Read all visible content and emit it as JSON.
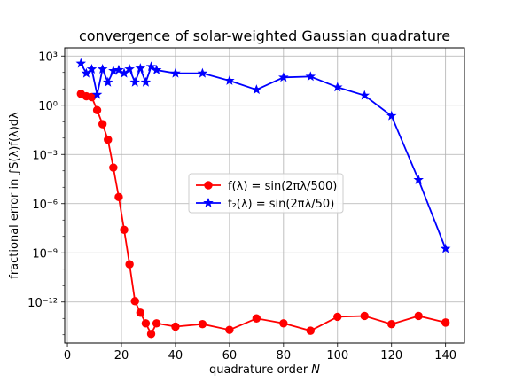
{
  "chart_data": {
    "type": "line",
    "title": "convergence of solar-weighted Gaussian quadrature",
    "xlabel": "quadrature order N",
    "ylabel": "fractional error in ∫S(λ)f(λ)dλ",
    "xlim": [
      -1,
      147
    ],
    "ylim_log10": [
      -14.5,
      3.5
    ],
    "yscale": "log",
    "grid": true,
    "legend_position": "center",
    "x_ticks": [
      0,
      20,
      40,
      60,
      80,
      100,
      120,
      140
    ],
    "x_tick_labels": [
      "0",
      "20",
      "40",
      "60",
      "80",
      "100",
      "120",
      "140"
    ],
    "y_ticks_log10": [
      3,
      0,
      -3,
      -6,
      -9,
      -12
    ],
    "y_tick_labels": [
      "10³",
      "10⁰",
      "10⁻³",
      "10⁻⁶",
      "10⁻⁹",
      "10⁻¹²"
    ],
    "series": [
      {
        "name": "f(λ) = sin(2πλ/500)",
        "color": "#ff0000",
        "marker": "circle",
        "x": [
          5,
          7,
          9,
          11,
          13,
          15,
          17,
          19,
          21,
          23,
          25,
          27,
          29,
          31,
          33,
          40,
          50,
          60,
          70,
          80,
          90,
          100,
          110,
          120,
          130,
          140
        ],
        "log10_y": [
          0.7,
          0.55,
          0.5,
          -0.3,
          -1.15,
          -2.1,
          -3.8,
          -5.6,
          -7.6,
          -9.7,
          -11.95,
          -12.65,
          -13.3,
          -13.95,
          -13.3,
          -13.5,
          -13.35,
          -13.7,
          -13.0,
          -13.3,
          -13.75,
          -12.9,
          -12.85,
          -13.35,
          -12.85,
          -13.25
        ]
      },
      {
        "name": "f₂(λ) = sin(2πλ/50)",
        "color": "#0000ff",
        "marker": "star",
        "x": [
          5,
          7,
          9,
          11,
          13,
          15,
          17,
          19,
          21,
          23,
          25,
          27,
          29,
          31,
          33,
          40,
          50,
          60,
          70,
          80,
          90,
          100,
          110,
          120,
          130,
          140
        ],
        "log10_y": [
          2.55,
          1.95,
          2.2,
          0.65,
          2.2,
          1.4,
          2.1,
          2.15,
          1.95,
          2.2,
          1.4,
          2.25,
          1.4,
          2.35,
          2.15,
          1.95,
          1.95,
          1.5,
          0.95,
          1.7,
          1.75,
          1.1,
          0.6,
          -0.65,
          -4.55,
          -8.75
        ]
      }
    ],
    "legend": {
      "entries": [
        {
          "label": "f(λ) = sin(2πλ/500)",
          "color": "#ff0000",
          "marker": "circle"
        },
        {
          "label": "f₂(λ) = sin(2πλ/50)",
          "color": "#0000ff",
          "marker": "star"
        }
      ]
    }
  }
}
